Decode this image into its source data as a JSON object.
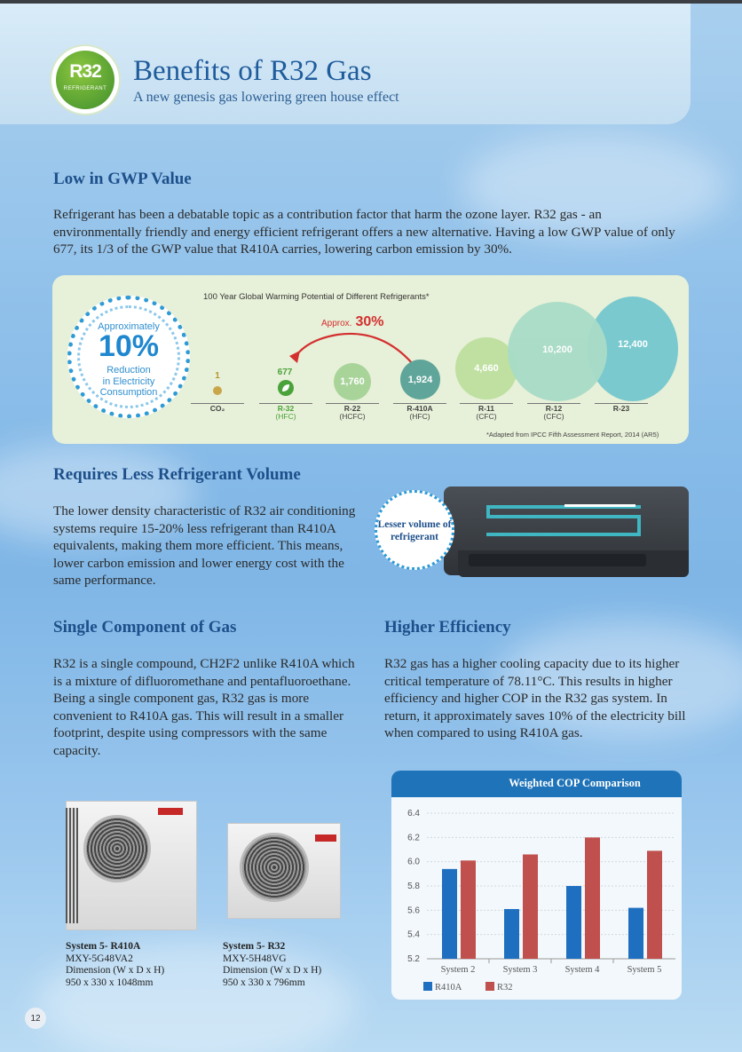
{
  "header": {
    "logo_text": "R32",
    "logo_sub": "REFRIGERANT",
    "title": "Benefits of R32 Gas",
    "subtitle": "A new genesis gas lowering green house effect"
  },
  "sections": {
    "gwp": {
      "heading": "Low in GWP Value",
      "body": "Refrigerant has been a debatable topic as a contribution factor that harm the ozone layer. R32 gas - an environmentally friendly and energy efficient refrigerant offers a new alternative. Having a low GWP value of only 677, its 1/3 of the GWP value that R410A carries, lowering carbon emission by 30%."
    },
    "volume": {
      "heading": "Requires Less Refrigerant Volume",
      "body": "The lower density characteristic of R32 air conditioning systems require 15-20% less refrigerant than R410A equivalents, making them more efficient. This means, lower carbon emission and lower energy cost with the same performance.",
      "badge": "Lesser volume of refrigerant"
    },
    "single": {
      "heading": "Single Component of Gas",
      "body": "R32 is a single compound, CH2F2 unlike R410A which is a mixture of difluoromethane and pentafluoroethane. Being a single component gas, R32 gas is more convenient to R410A gas. This will result in a smaller footprint, despite using compressors with the same capacity."
    },
    "efficiency": {
      "heading": "Higher Efficiency",
      "body": "R32 gas has a higher cooling capacity due to its higher critical temperature of 78.11°C. This results in higher efficiency and higher COP in the R32 gas system. In return, it approximately saves 10% of the electricity bill when compared to using R410A gas."
    }
  },
  "gwp_panel": {
    "title": "100 Year Global Warming Potential of Different Refrigerants*",
    "footnote": "*Adapted from IPCC Fifth Assessment Report, 2014 (AR5)",
    "badge_top": "Approximately",
    "badge_big": "10%",
    "badge_bottom_1": "Reduction",
    "badge_bottom_2": "in Electricity",
    "badge_bottom_3": "Consumption",
    "approx_label": "Approx.",
    "approx_value": "30%",
    "items": [
      {
        "value": "1",
        "name": "CO₂",
        "type": "",
        "color": "#c9a64a"
      },
      {
        "value": "677",
        "name": "R-32",
        "type": "(HFC)",
        "color": "#4aa23a"
      },
      {
        "value": "1,760",
        "name": "R-22",
        "type": "(HCFC)",
        "color": "#a8d49a"
      },
      {
        "value": "1,924",
        "name": "R-410A",
        "type": "(HFC)",
        "color": "#5fa59a"
      },
      {
        "value": "4,660",
        "name": "R-11",
        "type": "(CFC)",
        "color": "#bfe0a0"
      },
      {
        "value": "10,200",
        "name": "R-12",
        "type": "(CFC)",
        "color": "#a9dcc7"
      },
      {
        "value": "12,400",
        "name": "R-23",
        "type": "",
        "color": "#79c9cf"
      }
    ]
  },
  "units": [
    {
      "system": "System 5- R410A",
      "model": "MXY-5G48VA2",
      "dim_label": "Dimension (W x D x H)",
      "dims": "950 x 330 x 1048mm"
    },
    {
      "system": "System 5- R32",
      "model": "MXY-5H48VG",
      "dim_label": "Dimension (W x D x H)",
      "dims": "950 x 330 x 796mm"
    }
  ],
  "chart_data": {
    "type": "bar",
    "title": "Weighted COP Comparison",
    "categories": [
      "System 2",
      "System 3",
      "System 4",
      "System 5"
    ],
    "series": [
      {
        "name": "R410A",
        "values": [
          5.94,
          5.61,
          5.8,
          5.62
        ],
        "color": "#1f6fc0"
      },
      {
        "name": "R32",
        "values": [
          6.01,
          6.06,
          6.2,
          6.09
        ],
        "color": "#c0504d"
      }
    ],
    "ylim": [
      5.2,
      6.4
    ],
    "yticks": [
      "5.2",
      "5.4",
      "5.6",
      "5.8",
      "6.0",
      "6.2",
      "6.4"
    ],
    "legend": "bottom-left",
    "grid": true
  },
  "page_number": "12"
}
